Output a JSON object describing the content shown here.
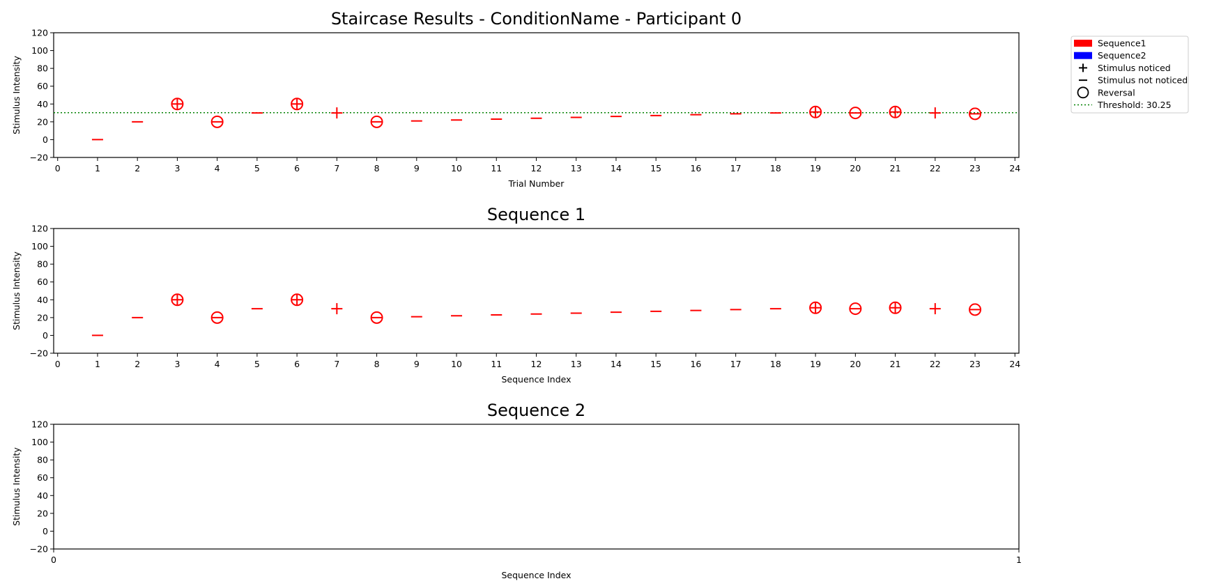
{
  "chart_data": [
    {
      "type": "scatter",
      "title": "Staircase Results - ConditionName - Participant 0",
      "xlabel": "Trial Number",
      "ylabel": "Stimulus Intensity",
      "xlim": [
        -0.1,
        24.1
      ],
      "ylim": [
        -20,
        120
      ],
      "xticks": [
        0,
        1,
        2,
        3,
        4,
        5,
        6,
        7,
        8,
        9,
        10,
        11,
        12,
        13,
        14,
        15,
        16,
        17,
        18,
        19,
        20,
        21,
        22,
        23,
        24
      ],
      "yticks": [
        -20,
        0,
        20,
        40,
        60,
        80,
        100,
        120
      ],
      "threshold": 30.25,
      "series": [
        {
          "name": "Sequence1",
          "color": "#ff0000",
          "points": [
            {
              "x": 1,
              "y": 0,
              "noticed": false,
              "reversal": false
            },
            {
              "x": 2,
              "y": 20,
              "noticed": false,
              "reversal": false
            },
            {
              "x": 3,
              "y": 40,
              "noticed": true,
              "reversal": true
            },
            {
              "x": 4,
              "y": 20,
              "noticed": false,
              "reversal": true
            },
            {
              "x": 5,
              "y": 30,
              "noticed": false,
              "reversal": false
            },
            {
              "x": 6,
              "y": 40,
              "noticed": true,
              "reversal": true
            },
            {
              "x": 7,
              "y": 30,
              "noticed": true,
              "reversal": false
            },
            {
              "x": 8,
              "y": 20,
              "noticed": false,
              "reversal": true
            },
            {
              "x": 9,
              "y": 21,
              "noticed": false,
              "reversal": false
            },
            {
              "x": 10,
              "y": 22,
              "noticed": false,
              "reversal": false
            },
            {
              "x": 11,
              "y": 23,
              "noticed": false,
              "reversal": false
            },
            {
              "x": 12,
              "y": 24,
              "noticed": false,
              "reversal": false
            },
            {
              "x": 13,
              "y": 25,
              "noticed": false,
              "reversal": false
            },
            {
              "x": 14,
              "y": 26,
              "noticed": false,
              "reversal": false
            },
            {
              "x": 15,
              "y": 27,
              "noticed": false,
              "reversal": false
            },
            {
              "x": 16,
              "y": 28,
              "noticed": false,
              "reversal": false
            },
            {
              "x": 17,
              "y": 29,
              "noticed": false,
              "reversal": false
            },
            {
              "x": 18,
              "y": 30,
              "noticed": false,
              "reversal": false
            },
            {
              "x": 19,
              "y": 31,
              "noticed": true,
              "reversal": true
            },
            {
              "x": 20,
              "y": 30,
              "noticed": false,
              "reversal": true
            },
            {
              "x": 21,
              "y": 31,
              "noticed": true,
              "reversal": true
            },
            {
              "x": 22,
              "y": 30,
              "noticed": true,
              "reversal": false
            },
            {
              "x": 23,
              "y": 29,
              "noticed": false,
              "reversal": true
            }
          ]
        },
        {
          "name": "Sequence2",
          "color": "#0000ff",
          "points": []
        }
      ],
      "legend": {
        "placement": "outside-top-right",
        "entries": [
          {
            "label": "Sequence1",
            "kind": "patch",
            "color": "#ff0000"
          },
          {
            "label": "Sequence2",
            "kind": "patch",
            "color": "#0000ff"
          },
          {
            "label": "Stimulus noticed",
            "kind": "plus",
            "color": "#000000"
          },
          {
            "label": "Stimulus not noticed",
            "kind": "minus",
            "color": "#000000"
          },
          {
            "label": "Reversal",
            "kind": "circle",
            "color": "#000000"
          },
          {
            "label": "Threshold: 30.25",
            "kind": "dotted-line",
            "color": "#008000"
          }
        ]
      },
      "grid": false
    },
    {
      "type": "scatter",
      "title": "Sequence 1",
      "xlabel": "Sequence Index",
      "ylabel": "Stimulus Intensity",
      "xlim": [
        -0.1,
        24.1
      ],
      "ylim": [
        -20,
        120
      ],
      "xticks": [
        0,
        1,
        2,
        3,
        4,
        5,
        6,
        7,
        8,
        9,
        10,
        11,
        12,
        13,
        14,
        15,
        16,
        17,
        18,
        19,
        20,
        21,
        22,
        23,
        24
      ],
      "yticks": [
        -20,
        0,
        20,
        40,
        60,
        80,
        100,
        120
      ],
      "series_ref": 0,
      "grid": false
    },
    {
      "type": "scatter",
      "title": "Sequence 2",
      "xlabel": "Sequence Index",
      "ylabel": "Stimulus Intensity",
      "xlim": [
        0,
        1
      ],
      "ylim": [
        -20,
        120
      ],
      "xticks": [
        0,
        1
      ],
      "yticks": [
        -20,
        0,
        20,
        40,
        60,
        80,
        100,
        120
      ],
      "series_ref": 1,
      "grid": false
    }
  ]
}
